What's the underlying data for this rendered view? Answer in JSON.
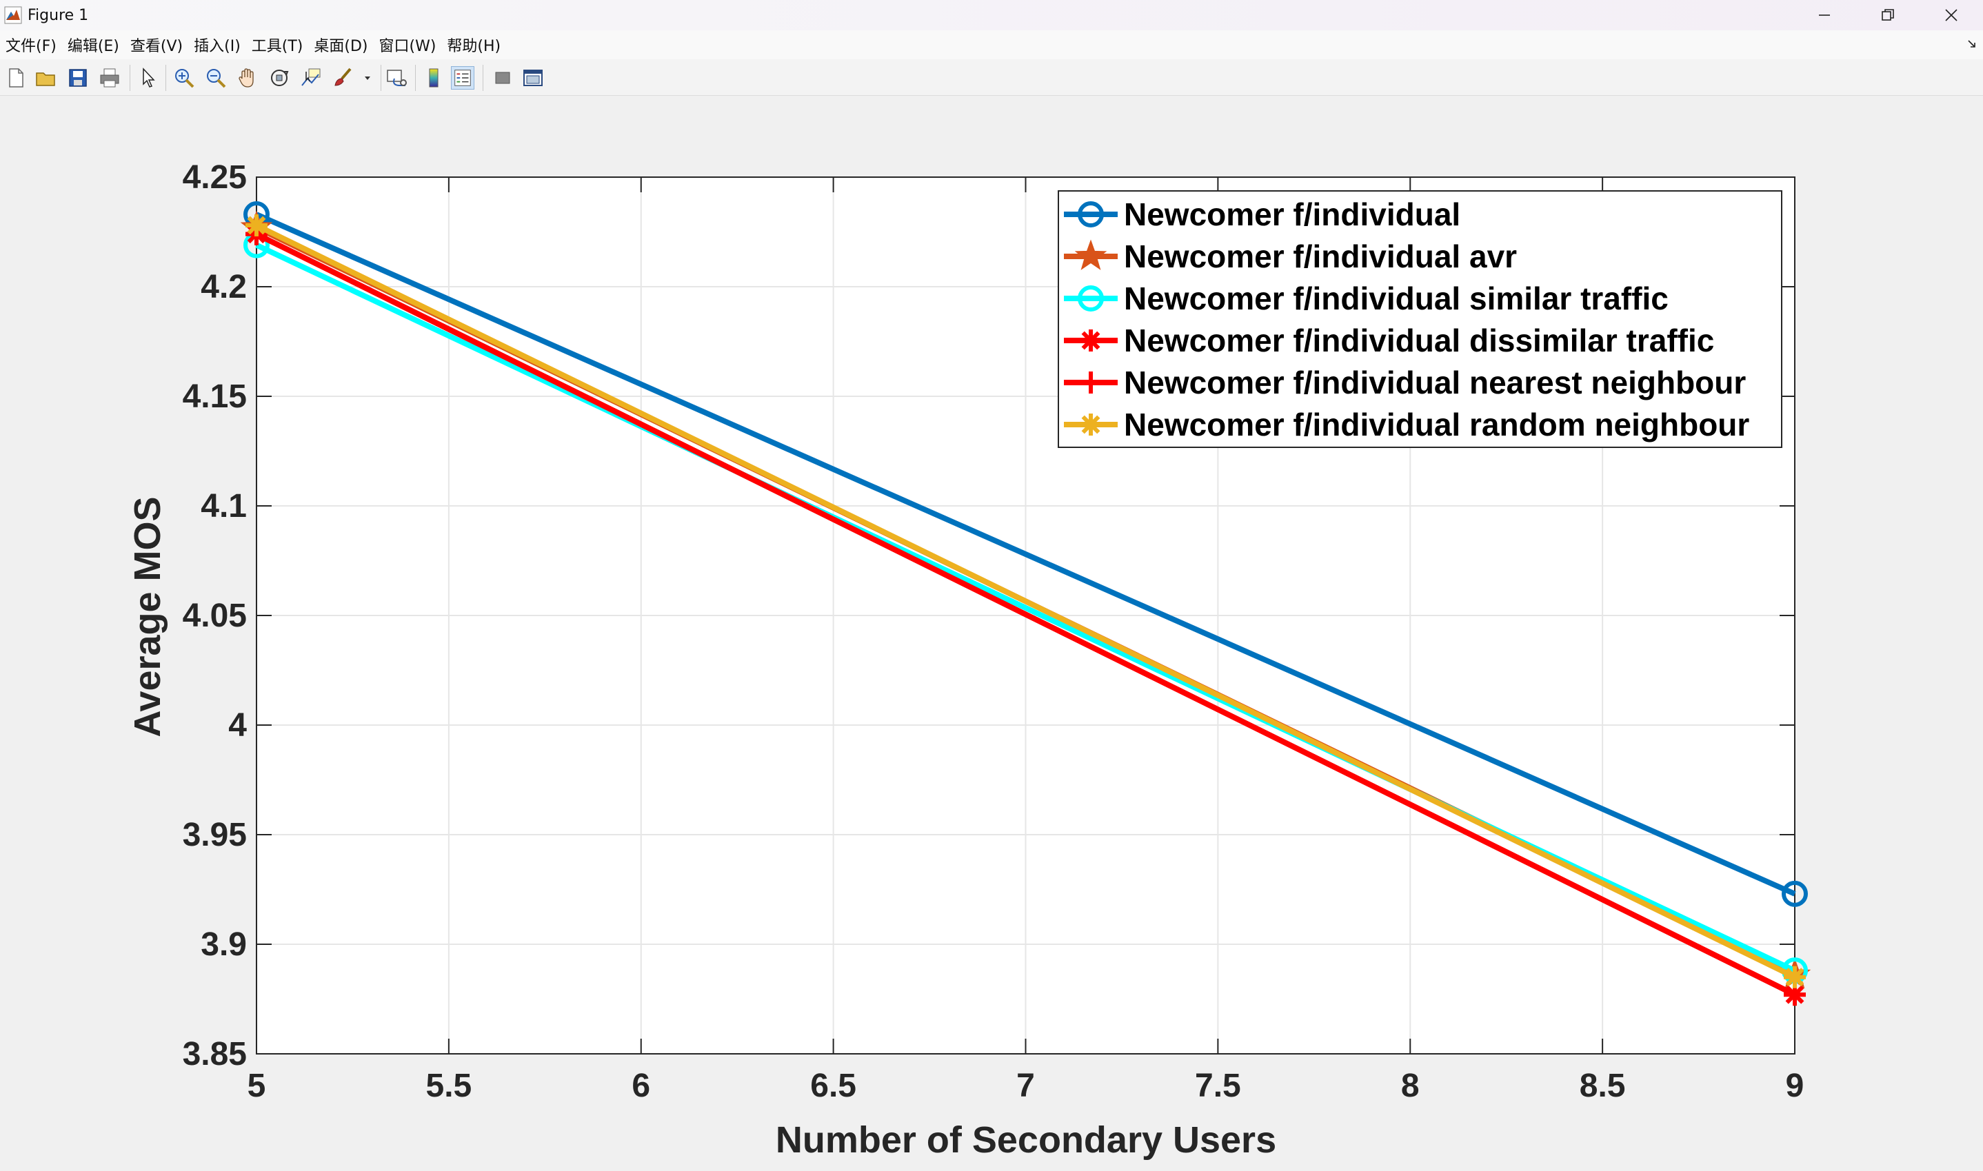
{
  "window": {
    "title": "Figure 1"
  },
  "menu": {
    "items": [
      "文件(F)",
      "编辑(E)",
      "查看(V)",
      "插入(I)",
      "工具(T)",
      "桌面(D)",
      "窗口(W)",
      "帮助(H)"
    ]
  },
  "toolbar": {
    "icons": [
      "new-figure-icon",
      "open-file-icon",
      "save-icon",
      "print-icon",
      "pointer-icon",
      "zoom-in-icon",
      "zoom-out-icon",
      "pan-hand-icon",
      "rotate-3d-icon",
      "data-cursor-icon",
      "brush-icon",
      "link-plot-icon",
      "colorbar-icon",
      "legend-icon",
      "hide-plot-tools-icon",
      "show-plot-tools-icon"
    ]
  },
  "chart_data": {
    "type": "line",
    "xlabel": "Number of Secondary Users",
    "ylabel": "Average MOS",
    "xlim": [
      5,
      9
    ],
    "ylim": [
      3.85,
      4.25
    ],
    "xticks": [
      "5",
      "5.5",
      "6",
      "6.5",
      "7",
      "7.5",
      "8",
      "8.5",
      "9"
    ],
    "yticks": [
      "3.85",
      "3.9",
      "3.95",
      "4",
      "4.05",
      "4.1",
      "4.15",
      "4.2",
      "4.25"
    ],
    "grid": true,
    "legend_position": "top-right",
    "series": [
      {
        "name": "Newcomer f/individual",
        "x": [
          5,
          9
        ],
        "values": [
          4.233,
          3.923
        ],
        "color": "#0072BD",
        "marker": "circle"
      },
      {
        "name": "Newcomer f/individual avr",
        "x": [
          5,
          9
        ],
        "values": [
          4.227,
          3.886
        ],
        "color": "#D95319",
        "marker": "star"
      },
      {
        "name": "Newcomer f/individual similar traffic",
        "x": [
          5,
          9
        ],
        "values": [
          4.219,
          3.888
        ],
        "color": "#00FFFF",
        "marker": "circle"
      },
      {
        "name": "Newcomer f/individual dissimilar traffic",
        "x": [
          5,
          9
        ],
        "values": [
          4.224,
          3.877
        ],
        "color": "#FF0000",
        "marker": "asterisk"
      },
      {
        "name": "Newcomer f/individual nearest neighbour",
        "x": [
          5,
          9
        ],
        "values": [
          4.224,
          3.877
        ],
        "color": "#FF0000",
        "marker": "plus"
      },
      {
        "name": "Newcomer f/individual random neighbour",
        "x": [
          5,
          9
        ],
        "values": [
          4.228,
          3.885
        ],
        "color": "#EDB120",
        "marker": "asterisk"
      }
    ]
  }
}
